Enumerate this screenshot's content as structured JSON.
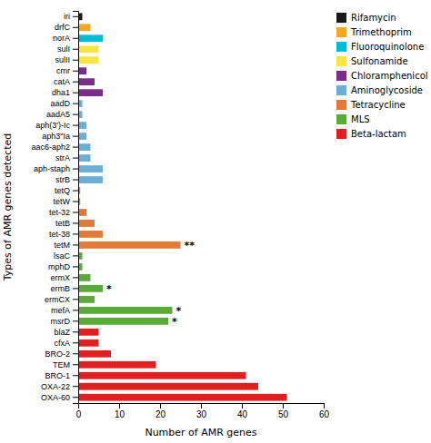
{
  "chart_data": {
    "type": "bar",
    "orientation": "horizontal",
    "categories": [
      "iri",
      "drfC",
      "norA",
      "sulI",
      "sulII",
      "cmr",
      "catA",
      "dha1",
      "aadD",
      "aadA5",
      "aph(3')-Ic",
      "aph3\"Ia",
      "aac6-aph2",
      "strA",
      "aph-staph",
      "strB",
      "tetQ",
      "tetW",
      "tet-32",
      "tetB",
      "tet-38",
      "tetM",
      "lsaC",
      "mphD",
      "ermX",
      "ermB",
      "ermCX",
      "mefA",
      "msrD",
      "blaZ",
      "cfxA",
      "BRO-2",
      "TEM",
      "BRO-1",
      "OXA-22",
      "OXA-60"
    ],
    "values": [
      1,
      3,
      6,
      5,
      5,
      2,
      4,
      6,
      1,
      1,
      2,
      2,
      3,
      3,
      6,
      6,
      0.5,
      0.5,
      2,
      4,
      6,
      25,
      1,
      1,
      3,
      6,
      4,
      23,
      22,
      5,
      5,
      8,
      19,
      41,
      44,
      51
    ],
    "colors": [
      "#1a1a1a",
      "#f5a623",
      "#00bcd4",
      "#f5e642",
      "#f5e642",
      "#7b2d8b",
      "#7b2d8b",
      "#7b2d8b",
      "#6baed6",
      "#6baed6",
      "#6baed6",
      "#6baed6",
      "#6baed6",
      "#6baed6",
      "#6baed6",
      "#6baed6",
      "#e07b39",
      "#e07b39",
      "#e07b39",
      "#e07b39",
      "#e07b39",
      "#e07b39",
      "#5aaa3a",
      "#5aaa3a",
      "#5aaa3a",
      "#5aaa3a",
      "#5aaa3a",
      "#5aaa3a",
      "#5aaa3a",
      "#e02020",
      "#e02020",
      "#e02020",
      "#e02020",
      "#e02020",
      "#e02020",
      "#e02020"
    ],
    "annotations": [
      {
        "category": "tetM",
        "text": "**"
      },
      {
        "category": "ermB",
        "text": "*"
      },
      {
        "category": "mefA",
        "text": "*"
      },
      {
        "category": "msrD",
        "text": "*"
      }
    ],
    "legend_entries": [
      {
        "name": "Rifamycin",
        "color": "#1a1a1a"
      },
      {
        "name": "Trimethoprim",
        "color": "#f5a623"
      },
      {
        "name": "Fluoroquinolone",
        "color": "#00bcd4"
      },
      {
        "name": "Sulfonamide",
        "color": "#f5e642"
      },
      {
        "name": "Chloramphenicol",
        "color": "#7b2d8b"
      },
      {
        "name": "Aminoglycoside",
        "color": "#6baed6"
      },
      {
        "name": "Tetracycline",
        "color": "#e07b39"
      },
      {
        "name": "MLS",
        "color": "#5aaa3a"
      },
      {
        "name": "Beta-lactam",
        "color": "#e02020"
      }
    ],
    "legend": "right",
    "xlabel": "Number of AMR genes",
    "ylabel": "Types of AMR genes detected",
    "xlim": [
      0,
      60
    ],
    "xticks": [
      0,
      10,
      20,
      30,
      40,
      50,
      60
    ],
    "grid": false
  }
}
